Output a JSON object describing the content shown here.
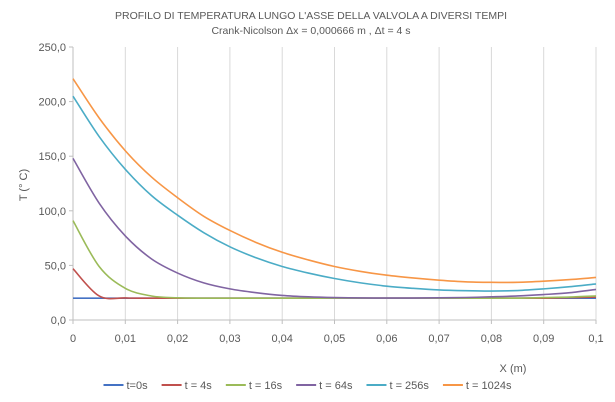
{
  "chart_data": {
    "type": "line",
    "title": "PROFILO DI TEMPERATURA LUNGO L'ASSE DELLA VALVOLA A DIVERSI TEMPI",
    "subtitle": "Crank-Nicolson    Δx = 0,000666 m    , Δt = 4 s",
    "xlabel": "X (m)",
    "ylabel": "T (° C)",
    "xlim": [
      0,
      0.1
    ],
    "ylim": [
      0,
      250
    ],
    "x_ticks": [
      0,
      0.01,
      0.02,
      0.03,
      0.04,
      0.05,
      0.06,
      0.07,
      0.08,
      0.09,
      0.1
    ],
    "x_tick_labels": [
      "0",
      "0,01",
      "0,02",
      "0,03",
      "0,04",
      "0,05",
      "0,06",
      "0,07",
      "0,08",
      "0,09",
      "0,1"
    ],
    "y_ticks": [
      0,
      50,
      100,
      150,
      200,
      250
    ],
    "y_tick_labels": [
      "0,0",
      "50,0",
      "100,0",
      "150,0",
      "200,0",
      "250,0"
    ],
    "grid": "vertical",
    "legend_position": "bottom",
    "x": [
      0,
      0.005,
      0.01,
      0.015,
      0.02,
      0.025,
      0.03,
      0.035,
      0.04,
      0.045,
      0.05,
      0.055,
      0.06,
      0.065,
      0.07,
      0.075,
      0.08,
      0.085,
      0.09,
      0.095,
      0.1
    ],
    "series": [
      {
        "name": "t=0s",
        "color": "#4472C4",
        "values": [
          20,
          20,
          20,
          20,
          20,
          20,
          20,
          20,
          20,
          20,
          20,
          20,
          20,
          20,
          20,
          20,
          20,
          20,
          20,
          20,
          20
        ]
      },
      {
        "name": "t = 4s",
        "color": "#C0504D",
        "values": [
          47,
          22,
          20.2,
          20,
          20,
          20,
          20,
          20,
          20,
          20,
          20,
          20,
          20,
          20,
          20,
          20,
          20,
          20,
          20,
          20.5,
          21
        ]
      },
      {
        "name": "t = 16s",
        "color": "#9BBB59",
        "values": [
          91,
          49,
          29,
          22,
          20.3,
          20,
          20,
          20,
          20,
          20,
          20,
          20,
          20,
          20,
          20,
          20,
          20,
          20,
          20.5,
          21,
          22
        ]
      },
      {
        "name": "t = 64s",
        "color": "#8064A2",
        "values": [
          148,
          107,
          77,
          56,
          43,
          34,
          28.5,
          25,
          22.5,
          21.2,
          20.5,
          20.2,
          20.1,
          20.1,
          20.3,
          20.6,
          21.2,
          22,
          23.3,
          25,
          28
        ]
      },
      {
        "name": "t = 256s",
        "color": "#4BACC6",
        "values": [
          205,
          168,
          138,
          114,
          96,
          80,
          67,
          57,
          49,
          43,
          38,
          34,
          31,
          29,
          27.5,
          26.8,
          26.5,
          27,
          28.5,
          30.5,
          33
        ]
      },
      {
        "name": "t = 1024s",
        "color": "#F79646",
        "values": [
          221,
          185,
          155,
          131,
          112,
          95,
          82,
          71,
          62,
          55,
          49,
          44.5,
          41,
          38.5,
          36.5,
          35,
          34.5,
          34.5,
          35.5,
          37,
          39
        ]
      }
    ]
  }
}
